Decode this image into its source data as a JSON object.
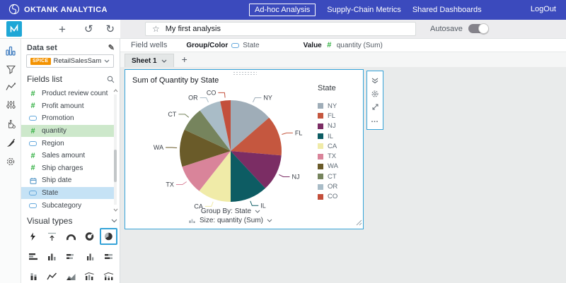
{
  "topbar": {
    "brand": "OKTANK ANALYTICA",
    "tabs": [
      {
        "label": "Ad-hoc Analysis",
        "active": true
      },
      {
        "label": "Supply-Chain Metrics",
        "active": false
      },
      {
        "label": "Shared Dashboards",
        "active": false
      }
    ],
    "logout_label": "LogOut"
  },
  "toolbar": {
    "analysis_title": "My first analysis",
    "autosave_label": "Autosave",
    "autosave_on": true
  },
  "sidebar": {
    "dataset_label": "Data set",
    "spice_badge": "SPICE",
    "dataset_name": "RetailSalesSam...",
    "fields_list_header": "Fields list",
    "fields": [
      {
        "name": "Product review count",
        "type": "numeric"
      },
      {
        "name": "Profit amount",
        "type": "numeric"
      },
      {
        "name": "Promotion",
        "type": "string"
      },
      {
        "name": "quantity",
        "type": "numeric",
        "highlight": "green"
      },
      {
        "name": "Region",
        "type": "string"
      },
      {
        "name": "Sales amount",
        "type": "numeric"
      },
      {
        "name": "Ship charges",
        "type": "numeric"
      },
      {
        "name": "Ship date",
        "type": "date"
      },
      {
        "name": "State",
        "type": "string",
        "highlight": "blue"
      },
      {
        "name": "Subcategory",
        "type": "string"
      }
    ],
    "visual_types_header": "Visual types"
  },
  "field_wells": {
    "label": "Field wells",
    "group_color_label": "Group/Color",
    "group_color_value": "State",
    "value_label": "Value",
    "value_value": "quantity (Sum)"
  },
  "sheet_bar": {
    "active_tab": "Sheet 1"
  },
  "visual": {
    "footer_group_by": "Group By: State",
    "footer_size": "Size: quantity (Sum)"
  },
  "icons": {
    "star": "☆",
    "undo": "↺",
    "redo": "↻",
    "plus": "+",
    "ellipsis": "…",
    "numeric_hash": "#",
    "pencil": "✎"
  },
  "accent_colors": {
    "topbar_indigo": "#3b4abd",
    "selection_blue": "#35a3d8",
    "spice_orange": "#f39200",
    "numeric_green": "#2eae3e"
  },
  "chart_data": {
    "type": "pie",
    "title": "Sum of Quantity by State",
    "legend_title": "State",
    "legend_position": "right",
    "categories": [
      "NY",
      "FL",
      "NJ",
      "IL",
      "CA",
      "TX",
      "WA",
      "CT",
      "OR",
      "CO"
    ],
    "values": [
      13.6,
      12.8,
      11.7,
      11.9,
      10.6,
      9.4,
      11.9,
      7.8,
      7.0,
      3.3
    ],
    "values_note": "estimated percent of whole; chart displays no numeric labels",
    "colors": [
      "#9fadb8",
      "#c5573f",
      "#7b2d64",
      "#0d5c63",
      "#f0eba8",
      "#d9849a",
      "#6a5b29",
      "#76845d",
      "#a9bcc7",
      "#c34f3b"
    ]
  }
}
